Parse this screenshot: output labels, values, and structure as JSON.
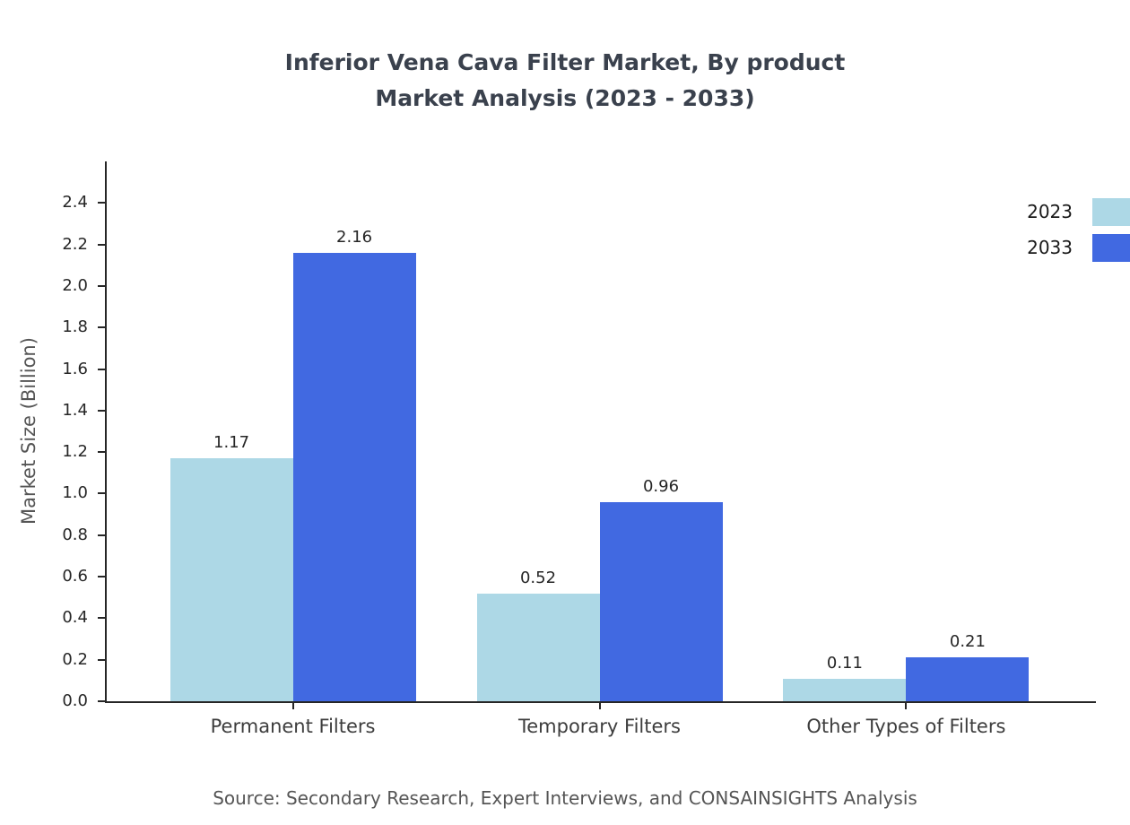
{
  "title": {
    "line1": "Inferior Vena Cava Filter Market, By product",
    "line2": "Market Analysis (2023 - 2033)"
  },
  "source_note": "Source: Secondary Research, Expert Interviews, and CONSAINSIGHTS Analysis",
  "chart_data": {
    "type": "bar",
    "title": "Inferior Vena Cava Filter Market, By product Market Analysis (2023 - 2033)",
    "categories": [
      "Permanent Filters",
      "Temporary Filters",
      "Other Types of Filters"
    ],
    "series": [
      {
        "name": "2023",
        "color": "#ADD8E6",
        "values": [
          1.17,
          0.52,
          0.11
        ]
      },
      {
        "name": "2033",
        "color": "#4169E1",
        "values": [
          2.16,
          0.96,
          0.21
        ]
      }
    ],
    "xlabel": "",
    "ylabel": "Market Size (Billion)",
    "ylim": [
      0,
      2.4
    ],
    "ytick_step": 0.2,
    "yticks": [
      "0.0",
      "0.2",
      "0.4",
      "0.6",
      "0.8",
      "1.0",
      "1.2",
      "1.4",
      "1.6",
      "1.8",
      "2.0",
      "2.2",
      "2.4"
    ],
    "grid": false,
    "legend_position": "top-right"
  }
}
